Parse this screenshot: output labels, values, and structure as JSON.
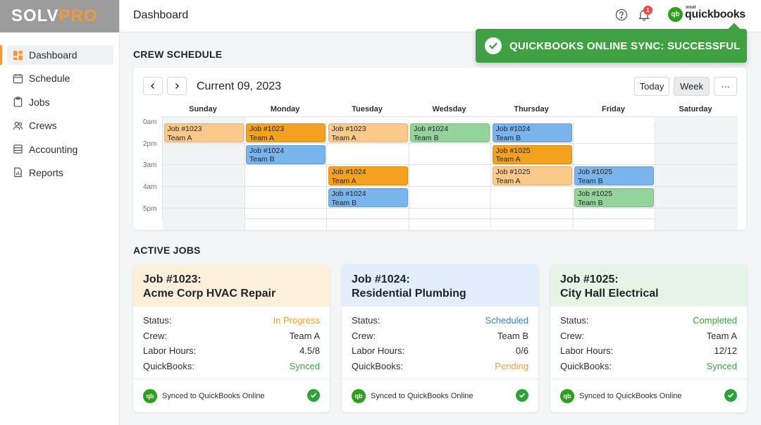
{
  "brand": {
    "name_part1": "SOLV",
    "name_part2": "PRO",
    "accent_color": "#f29a3a"
  },
  "header": {
    "title": "Dashboard",
    "notification_count": "1",
    "integration_logo_small": "intuit",
    "integration_logo_text": "quickbooks",
    "integration_logo_glyph": "qb"
  },
  "sidebar": {
    "items": [
      {
        "label": "Dashboard",
        "icon": "dashboard-icon",
        "active": true
      },
      {
        "label": "Schedule",
        "icon": "calendar-icon"
      },
      {
        "label": "Jobs",
        "icon": "clipboard-icon"
      },
      {
        "label": "Crews",
        "icon": "users-icon"
      },
      {
        "label": "Accounting",
        "icon": "database-icon"
      },
      {
        "label": "Reports",
        "icon": "report-icon"
      }
    ]
  },
  "toast": {
    "message": "QUICKBOOKS ONLINE SYNC: SUCCESSFUL",
    "color": "#3fa142"
  },
  "schedule": {
    "section_title": "CREW SCHEDULE",
    "period_label": "Current 09, 2023",
    "buttons": {
      "today": "Today",
      "week": "Week",
      "more": "···"
    },
    "days": [
      "Sunday",
      "Monday",
      "Tuesday",
      "Wedsday",
      "Thursday",
      "Friday",
      "Saturday"
    ],
    "times": [
      "0am",
      "2pm",
      "3am",
      "4am",
      "5pm"
    ],
    "jobs": [
      {
        "day": 0,
        "slot": 0,
        "job": "Job #1023",
        "team": "Team A",
        "color": "light-orange"
      },
      {
        "day": 1,
        "slot": 0,
        "job": "Job #1023",
        "team": "Team A",
        "color": "orange"
      },
      {
        "day": 1,
        "slot": 1,
        "job": "Job #1024",
        "team": "Team B",
        "color": "blue"
      },
      {
        "day": 2,
        "slot": 0,
        "job": "Job #1023",
        "team": "Team A",
        "color": "light-orange"
      },
      {
        "day": 2,
        "slot": 2,
        "job": "Job #1024",
        "team": "Team A",
        "color": "orange"
      },
      {
        "day": 2,
        "slot": 3,
        "job": "Job #1024",
        "team": "Team B",
        "color": "blue"
      },
      {
        "day": 3,
        "slot": 0,
        "job": "Job #1024",
        "team": "Team B",
        "color": "green"
      },
      {
        "day": 4,
        "slot": 0,
        "job": "Job #1024",
        "team": "Team B",
        "color": "blue"
      },
      {
        "day": 4,
        "slot": 1,
        "job": "Job #1025",
        "team": "Team A",
        "color": "orange"
      },
      {
        "day": 4,
        "slot": 2,
        "job": "Job #1025",
        "team": "Team A",
        "color": "light-orange"
      },
      {
        "day": 5,
        "slot": 2,
        "job": "Job #1025",
        "team": "Team B",
        "color": "blue"
      },
      {
        "day": 5,
        "slot": 3,
        "job": "Job #1025",
        "team": "Team B",
        "color": "green"
      }
    ]
  },
  "active_jobs": {
    "section_title": "ACTIVE JOBS",
    "labels": {
      "status": "Status:",
      "crew": "Crew:",
      "labor": "Labor Hours:",
      "quickbooks": "QuickBooks:"
    },
    "footer_text": "Synced to QuickBooks Online",
    "cards": [
      {
        "title_line1": "Job #1023:",
        "title_line2": "Acme Corp HVAC Repair",
        "status": "In Progress",
        "crew": "Team A",
        "labor": "4.5/8",
        "quickbooks": "Synced",
        "theme": "orange"
      },
      {
        "title_line1": "Job #1024:",
        "title_line2": "Residential Plumbing",
        "status": "Scheduled",
        "crew": "Team B",
        "labor": "0/6",
        "quickbooks": "Pending",
        "theme": "blue"
      },
      {
        "title_line1": "Job #1025:",
        "title_line2": "City Hall Electrical",
        "status": "Completed",
        "crew": "Team A",
        "labor": "12/12",
        "quickbooks": "Synced",
        "theme": "green"
      }
    ]
  }
}
